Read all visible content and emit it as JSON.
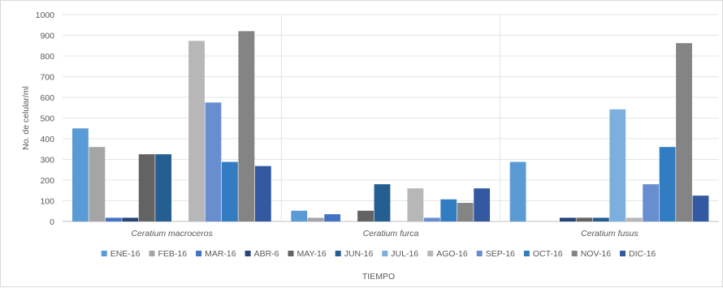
{
  "chart_data": {
    "type": "bar",
    "title": "",
    "xlabel": "TIEMPO",
    "ylabel": "No. de celular/ml",
    "ylim": [
      0,
      1000
    ],
    "yticks": [
      0,
      100,
      200,
      300,
      400,
      500,
      600,
      700,
      800,
      900,
      1000
    ],
    "grid": true,
    "legend_position": "bottom",
    "categories": [
      "Ceratium macroceros",
      "Ceratium furca",
      "Ceratium fusus"
    ],
    "series": [
      {
        "name": "ENE-16",
        "color": "#5b9bd5",
        "values": [
          450,
          52,
          288
        ]
      },
      {
        "name": "FEB-16",
        "color": "#a5a5a5",
        "values": [
          360,
          18,
          0
        ]
      },
      {
        "name": "MAR-16",
        "color": "#4472c4",
        "values": [
          18,
          35,
          0
        ]
      },
      {
        "name": "ABR-6",
        "color": "#264478",
        "values": [
          18,
          0,
          18
        ]
      },
      {
        "name": "MAY-16",
        "color": "#636363",
        "values": [
          325,
          52,
          18
        ]
      },
      {
        "name": "JUN-16",
        "color": "#255e91",
        "values": [
          325,
          180,
          18
        ]
      },
      {
        "name": "JUL-16",
        "color": "#7cafdd",
        "values": [
          0,
          0,
          542
        ]
      },
      {
        "name": "AGO-16",
        "color": "#b7b7b7",
        "values": [
          873,
          160,
          18
        ]
      },
      {
        "name": "SEP-16",
        "color": "#698ed0",
        "values": [
          575,
          18,
          180
        ]
      },
      {
        "name": "OCT-16",
        "color": "#327dc2",
        "values": [
          288,
          107,
          360
        ]
      },
      {
        "name": "NOV-16",
        "color": "#848484",
        "values": [
          920,
          90,
          862
        ]
      },
      {
        "name": "DIC-16",
        "color": "#335aa1",
        "values": [
          268,
          160,
          125
        ]
      }
    ]
  }
}
